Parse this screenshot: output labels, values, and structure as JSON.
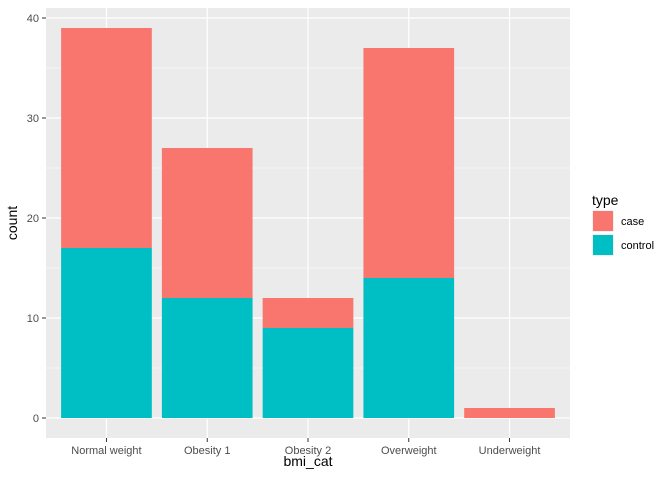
{
  "chart_data": {
    "type": "bar",
    "stacked": true,
    "categories": [
      "Normal weight",
      "Obesity 1",
      "Obesity 2",
      "Overweight",
      "Underweight"
    ],
    "series": [
      {
        "name": "case",
        "color": "#F8766D",
        "values": [
          22,
          15,
          3,
          23,
          1
        ]
      },
      {
        "name": "control",
        "color": "#00BFC4",
        "values": [
          17,
          12,
          9,
          14,
          0
        ]
      }
    ],
    "xlabel": "bmi_cat",
    "ylabel": "count",
    "ylim": [
      -2,
      41
    ],
    "yticks": [
      0,
      10,
      20,
      30,
      40
    ],
    "grid": true,
    "panel_background": "#EBEBEB",
    "legend": {
      "title": "type",
      "position": "right"
    }
  }
}
